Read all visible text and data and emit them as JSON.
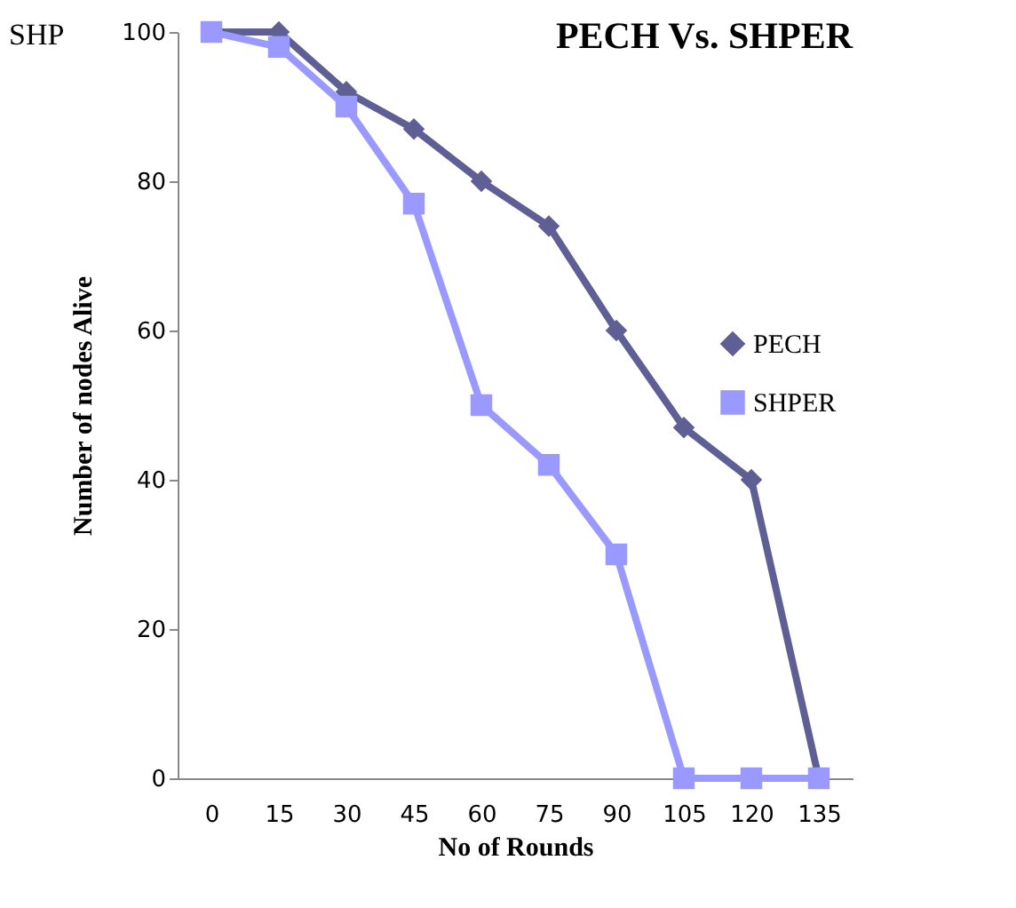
{
  "chart_data": {
    "type": "line",
    "title": "PECH Vs. SHPER",
    "xlabel": "No of Rounds",
    "ylabel": "Number of nodes Alive",
    "annotations": [
      "SHP"
    ],
    "categories": [
      "0",
      "15",
      "30",
      "45",
      "60",
      "75",
      "90",
      "105",
      "120",
      "135"
    ],
    "series": [
      {
        "name": "PECH",
        "color": "#5f5f95",
        "marker": "diamond",
        "values": [
          100,
          100,
          92,
          87,
          80,
          74,
          60,
          47,
          40,
          0
        ]
      },
      {
        "name": "SHPER",
        "color": "#9999ff",
        "marker": "square",
        "values": [
          100,
          98,
          90,
          77,
          50,
          42,
          30,
          0,
          0,
          0
        ]
      }
    ],
    "ylim": [
      0,
      100
    ],
    "yticks": [
      0,
      20,
      40,
      60,
      80,
      100
    ],
    "grid": false,
    "legend": "right",
    "line_style": "solid"
  }
}
